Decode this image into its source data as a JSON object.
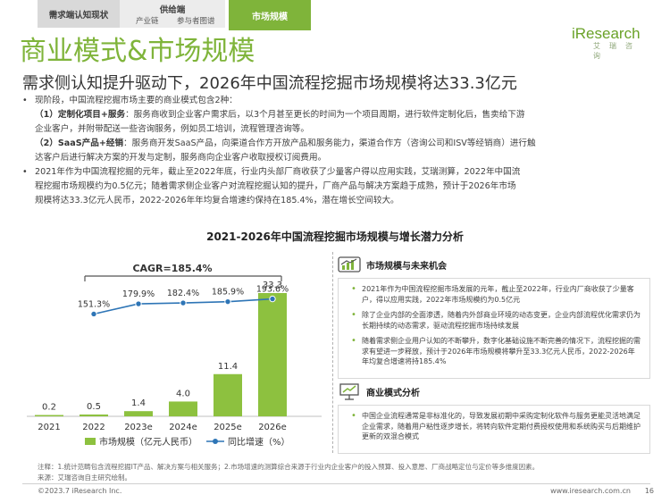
{
  "nav": {
    "demand": "需求端认知现状",
    "supply_title": "供给端",
    "supply_sub1": "产业链",
    "supply_sub2": "参与者图谱",
    "market": "市场规模"
  },
  "logo": {
    "main": "iResearch",
    "sub": "艾瑞咨询"
  },
  "page_title": "商业模式&市场规模",
  "subtitle": "需求侧认知提升驱动下，2026年中国流程挖掘市场规模将达33.3亿元",
  "body": {
    "p1": "现阶段，中国流程挖掘市场主要的商业模式包含2种：",
    "p2_label": "（1）定制化项目+服务",
    "p2_text": "：服务商收到企业客户需求后，以3个月甚至更长的时间为一个项目周期，进行软件定制化后，售卖给下游",
    "p2_cont": "企业客户，并附带配送一些咨询服务，例如员工培训，流程管理咨询等。",
    "p3_label": "（2）SaaS产品+经销",
    "p3_text": "：服务商开发SaaS产品，向渠道合作方开放产品和服务能力，渠道合作方（咨询公司和ISV等经销商）进行触",
    "p3_cont": "达客户后进行解决方案的开发与定制，服务商向企业客户收取授权订阅费用。",
    "p4_line1": "2021年作为中国流程挖掘的元年，截止至2022年底，行业内头部厂商收获了少量客户得以应用实践，艾瑞测算，2022年中国流",
    "p4_line2": "程挖掘市场规模约为0.5亿元；随着需求侧企业客户对流程挖掘认知的提升，厂商产品与解决方案趋于成熟，预计于2026年市场",
    "p4_line3": "规模将达33.3亿元人民币，2022-2026年年均复合增速约保持在185.4%，潜在增长空间较大。"
  },
  "chart_data": {
    "type": "bar",
    "title": "2021-2026年中国流程挖掘市场规模与增长潜力分析",
    "categories": [
      "2021",
      "2022",
      "2023e",
      "2024e",
      "2025e",
      "2026e"
    ],
    "series": [
      {
        "name": "市场规模（亿元人民币）",
        "kind": "bar",
        "values": [
          0.2,
          0.5,
          1.4,
          4.0,
          11.4,
          33.3
        ],
        "labels": [
          "0.2",
          "0.5",
          "1.4",
          "4.0",
          "11.4",
          "33.3"
        ]
      },
      {
        "name": "同比增速（%）",
        "kind": "line",
        "values": [
          null,
          151.3,
          179.9,
          182.4,
          185.9,
          193.6
        ],
        "labels": [
          "",
          "151.3%",
          "179.9%",
          "182.4%",
          "185.9%",
          "193.6%"
        ]
      }
    ],
    "cagr_label": "CAGR=185.4%",
    "colors": {
      "bar": "#8dc13f",
      "line": "#2e75b6"
    },
    "ylim_bar": [
      0,
      33.3
    ],
    "ylim_line": [
      140,
      200
    ]
  },
  "panel1": {
    "title": "市场规模与未来机会",
    "items": [
      "2021年作为中国流程挖掘市场发展的元年，截止至2022年，行业内厂商收获了少量客户，得以应用实践，2022年市场规模约为0.5亿元",
      "除了企业内部的全面渗透，随着内外部商业环境的动态变更，企业内部流程优化需求仍为长期持续的动态需求，驱动流程挖掘市场持续发展",
      "随着需求侧企业用户认知的不断攀升，数字化基础设施不断完善的情况下，流程挖掘的需求有望进一步释放，预计于2026年市场规模将攀升至33.3亿元人民币，2022-2026年年均复合增速将持185.4%"
    ]
  },
  "panel2": {
    "title": "商业模式分析",
    "items": [
      "中国企业流程通常是非标准化的，导致发展初期中采购定制化软件与服务更能灵活地满足企业需求，随着用户粘性逐步增长，将转向软件定期付费授权使用和系统购买与后期维护更新的双混合模式"
    ]
  },
  "notes": {
    "line1": "注释：1.统计范畴包含流程挖掘IT产品、解决方案与相关服务；2.市场增速的测算综合来源于行业内企业客户的投入预算、投入意愿、厂商战略定位与定价等多维度因素。",
    "line2": "来源：艾瑞咨询自主研究绘制。"
  },
  "footer": {
    "copyright": "©2023.7 iResearch Inc.",
    "website": "www.iresearch.com.cn",
    "page": "16"
  }
}
